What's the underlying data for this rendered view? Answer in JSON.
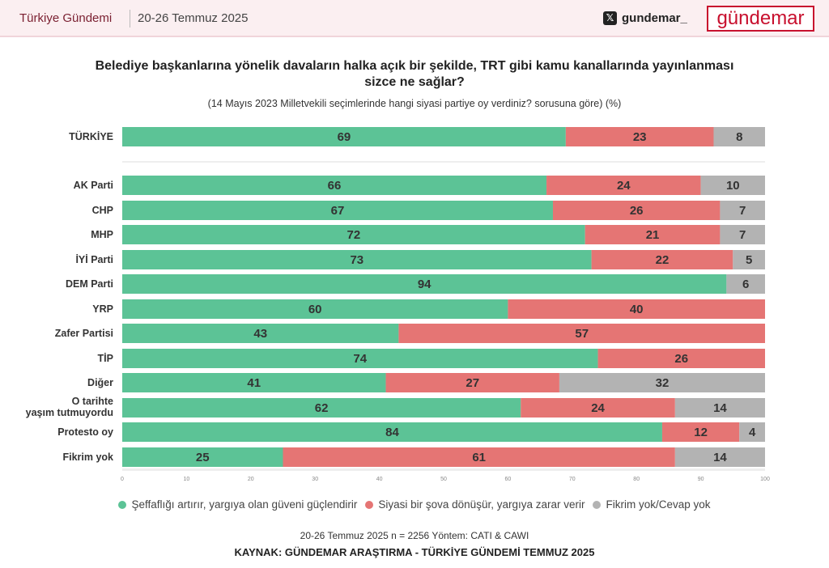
{
  "header": {
    "left_title": "Türkiye Gündemi",
    "date": "20-26 Temmuz 2025",
    "x_icon": "x-logo-icon",
    "x_handle": "gundemar_",
    "logo": "gündemar"
  },
  "chart_data": {
    "type": "bar",
    "orientation": "horizontal",
    "stacked": true,
    "title": "Belediye başkanlarına yönelik davaların halka açık bir şekilde, TRT gibi kamu kanallarında yayınlanması sizce ne sağlar?",
    "subtitle": "(14 Mayıs 2023 Milletvekili seçimlerinde hangi siyasi partiye oy verdiniz? sorusuna göre) (%)",
    "categories": [
      "TÜRKİYE",
      "AK Parti",
      "CHP",
      "MHP",
      "İYİ Parti",
      "DEM Parti",
      "YRP",
      "Zafer Partisi",
      "TİP",
      "Diğer",
      "O tarihte yaşım tutmuyordu",
      "Protesto oy",
      "Fikrim yok"
    ],
    "series": [
      {
        "name": "Şeffaflığı artırır, yargıya olan güveni güçlendirir",
        "color": "#5cc396",
        "values": [
          69,
          66,
          67,
          72,
          73,
          94,
          60,
          43,
          74,
          41,
          62,
          84,
          25
        ]
      },
      {
        "name": "Siyasi bir şova dönüşür, yargıya zarar verir",
        "color": "#e57574",
        "values": [
          23,
          24,
          26,
          21,
          22,
          0,
          40,
          57,
          26,
          27,
          24,
          12,
          61
        ]
      },
      {
        "name": "Fikrim yok/Cevap yok",
        "color": "#b3b3b3",
        "values": [
          8,
          10,
          7,
          7,
          5,
          6,
          0,
          0,
          0,
          32,
          14,
          4,
          14
        ]
      }
    ],
    "xlim": [
      0,
      100
    ],
    "xticks": [
      "0",
      "10",
      "20",
      "30",
      "40",
      "50",
      "60",
      "70",
      "80",
      "90",
      "100"
    ],
    "legend_position": "bottom"
  },
  "footer": {
    "method": "20-26 Temmuz 2025 n = 2256 Yöntem: CATI & CAWI",
    "source": "KAYNAK: GÜNDEMAR ARAŞTIRMA - TÜRKİYE GÜNDEMİ TEMMUZ 2025"
  }
}
